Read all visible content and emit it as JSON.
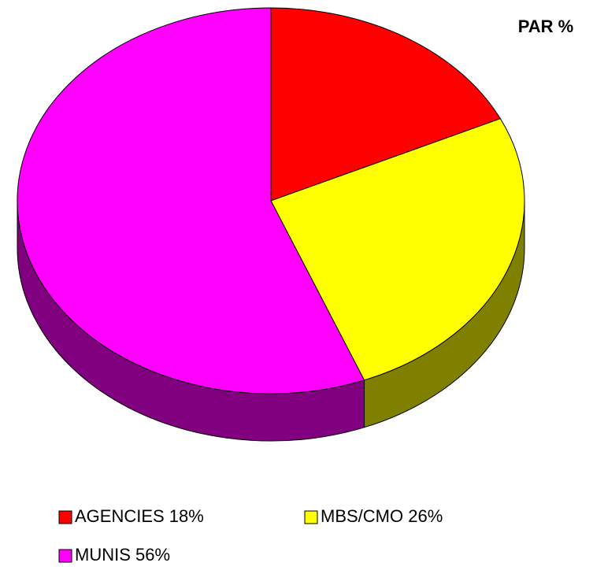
{
  "chart_data": {
    "type": "pie",
    "title": "PAR %",
    "categories": [
      "AGENCIES 18%",
      "MBS/CMO 26%",
      "MUNIS 56%"
    ],
    "values": [
      18,
      26,
      56
    ],
    "colors": [
      "#ff0000",
      "#ffff00",
      "#ff00ff"
    ]
  }
}
